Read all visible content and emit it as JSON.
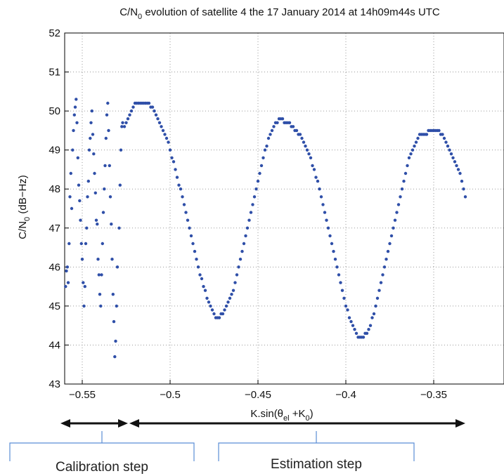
{
  "chart_data": {
    "type": "scatter",
    "title": "C/N0 evolution of satellite 4 the 17 January 2014 at 14h09m44s UTC",
    "xlabel": "K.sin(θel +K0)",
    "ylabel": "C/N0 (dB−Hz)",
    "xlim": [
      -0.56,
      -0.31
    ],
    "ylim": [
      43,
      52
    ],
    "x_ticks": [
      -0.55,
      -0.5,
      -0.45,
      -0.4,
      -0.35
    ],
    "x_tick_labels": [
      "−0.55",
      "−0.5",
      "−0.45",
      "−0.4",
      "−0.35"
    ],
    "y_ticks": [
      43,
      44,
      45,
      46,
      47,
      48,
      49,
      50,
      51,
      52
    ],
    "y_tick_labels": [
      "43",
      "44",
      "45",
      "46",
      "47",
      "48",
      "49",
      "50",
      "51",
      "52"
    ],
    "grid": true,
    "marker_color": "#2f4fa8",
    "series": [
      {
        "points": [
          [
            -0.5595,
            45.5
          ],
          [
            -0.559,
            45.9
          ],
          [
            -0.5585,
            46.0
          ],
          [
            -0.558,
            45.6
          ],
          [
            -0.5575,
            46.6
          ],
          [
            -0.557,
            47.8
          ],
          [
            -0.5565,
            48.4
          ],
          [
            -0.556,
            47.5
          ],
          [
            -0.5555,
            49.0
          ],
          [
            -0.555,
            49.5
          ],
          [
            -0.5545,
            49.9
          ],
          [
            -0.554,
            50.1
          ],
          [
            -0.5535,
            50.3
          ],
          [
            -0.553,
            49.7
          ],
          [
            -0.5525,
            48.8
          ],
          [
            -0.552,
            48.1
          ],
          [
            -0.5515,
            47.7
          ],
          [
            -0.551,
            47.2
          ],
          [
            -0.5505,
            46.6
          ],
          [
            -0.55,
            46.2
          ],
          [
            -0.5495,
            45.6
          ],
          [
            -0.549,
            45.0
          ],
          [
            -0.5485,
            45.5
          ],
          [
            -0.548,
            46.6
          ],
          [
            -0.5475,
            47.0
          ],
          [
            -0.547,
            47.8
          ],
          [
            -0.5465,
            48.2
          ],
          [
            -0.546,
            49.0
          ],
          [
            -0.5455,
            49.3
          ],
          [
            -0.545,
            49.7
          ],
          [
            -0.5445,
            50.0
          ],
          [
            -0.544,
            49.4
          ],
          [
            -0.5435,
            48.9
          ],
          [
            -0.543,
            48.4
          ],
          [
            -0.5425,
            47.9
          ],
          [
            -0.542,
            47.2
          ],
          [
            -0.5415,
            47.1
          ],
          [
            -0.541,
            46.2
          ],
          [
            -0.5405,
            45.8
          ],
          [
            -0.54,
            45.3
          ],
          [
            -0.5395,
            45.0
          ],
          [
            -0.539,
            45.8
          ],
          [
            -0.5385,
            46.6
          ],
          [
            -0.538,
            47.4
          ],
          [
            -0.5375,
            48.0
          ],
          [
            -0.537,
            48.6
          ],
          [
            -0.5365,
            49.3
          ],
          [
            -0.536,
            49.9
          ],
          [
            -0.5355,
            50.2
          ],
          [
            -0.535,
            49.5
          ],
          [
            -0.5345,
            48.6
          ],
          [
            -0.534,
            47.8
          ],
          [
            -0.5335,
            47.1
          ],
          [
            -0.533,
            46.2
          ],
          [
            -0.5325,
            45.3
          ],
          [
            -0.532,
            44.6
          ],
          [
            -0.5315,
            43.7
          ],
          [
            -0.531,
            44.1
          ],
          [
            -0.5305,
            45.0
          ],
          [
            -0.53,
            46.0
          ],
          [
            -0.529,
            47.0
          ],
          [
            -0.5285,
            48.1
          ],
          [
            -0.528,
            49.0
          ],
          [
            -0.5275,
            49.6
          ],
          [
            -0.527,
            49.7
          ],
          [
            -0.526,
            49.6
          ],
          [
            -0.525,
            49.7
          ],
          [
            -0.524,
            49.8
          ],
          [
            -0.523,
            49.9
          ],
          [
            -0.522,
            50.0
          ],
          [
            -0.521,
            50.1
          ],
          [
            -0.52,
            50.2
          ],
          [
            -0.519,
            50.2
          ],
          [
            -0.518,
            50.2
          ],
          [
            -0.517,
            50.2
          ],
          [
            -0.516,
            50.2
          ],
          [
            -0.515,
            50.2
          ],
          [
            -0.514,
            50.2
          ],
          [
            -0.513,
            50.2
          ],
          [
            -0.512,
            50.2
          ],
          [
            -0.511,
            50.1
          ],
          [
            -0.51,
            50.1
          ],
          [
            -0.509,
            50.0
          ],
          [
            -0.508,
            49.9
          ],
          [
            -0.507,
            49.8
          ],
          [
            -0.506,
            49.7
          ],
          [
            -0.505,
            49.6
          ],
          [
            -0.504,
            49.5
          ],
          [
            -0.503,
            49.4
          ],
          [
            -0.502,
            49.3
          ],
          [
            -0.501,
            49.2
          ],
          [
            -0.5,
            49.0
          ],
          [
            -0.499,
            48.8
          ],
          [
            -0.498,
            48.7
          ],
          [
            -0.497,
            48.5
          ],
          [
            -0.496,
            48.3
          ],
          [
            -0.495,
            48.1
          ],
          [
            -0.494,
            48.0
          ],
          [
            -0.493,
            47.8
          ],
          [
            -0.492,
            47.6
          ],
          [
            -0.491,
            47.4
          ],
          [
            -0.49,
            47.2
          ],
          [
            -0.489,
            47.0
          ],
          [
            -0.488,
            46.8
          ],
          [
            -0.487,
            46.6
          ],
          [
            -0.486,
            46.4
          ],
          [
            -0.485,
            46.2
          ],
          [
            -0.484,
            46.0
          ],
          [
            -0.483,
            45.8
          ],
          [
            -0.482,
            45.7
          ],
          [
            -0.481,
            45.5
          ],
          [
            -0.48,
            45.4
          ],
          [
            -0.479,
            45.2
          ],
          [
            -0.478,
            45.1
          ],
          [
            -0.477,
            45.0
          ],
          [
            -0.476,
            44.9
          ],
          [
            -0.475,
            44.8
          ],
          [
            -0.474,
            44.7
          ],
          [
            -0.473,
            44.7
          ],
          [
            -0.472,
            44.7
          ],
          [
            -0.471,
            44.8
          ],
          [
            -0.47,
            44.8
          ],
          [
            -0.469,
            44.9
          ],
          [
            -0.468,
            45.0
          ],
          [
            -0.467,
            45.1
          ],
          [
            -0.466,
            45.2
          ],
          [
            -0.465,
            45.3
          ],
          [
            -0.464,
            45.4
          ],
          [
            -0.463,
            45.6
          ],
          [
            -0.462,
            45.8
          ],
          [
            -0.461,
            46.0
          ],
          [
            -0.46,
            46.2
          ],
          [
            -0.459,
            46.4
          ],
          [
            -0.458,
            46.6
          ],
          [
            -0.457,
            46.8
          ],
          [
            -0.456,
            47.0
          ],
          [
            -0.455,
            47.2
          ],
          [
            -0.454,
            47.4
          ],
          [
            -0.453,
            47.6
          ],
          [
            -0.452,
            47.8
          ],
          [
            -0.451,
            48.0
          ],
          [
            -0.45,
            48.2
          ],
          [
            -0.449,
            48.4
          ],
          [
            -0.448,
            48.6
          ],
          [
            -0.447,
            48.8
          ],
          [
            -0.446,
            49.0
          ],
          [
            -0.445,
            49.1
          ],
          [
            -0.444,
            49.3
          ],
          [
            -0.443,
            49.4
          ],
          [
            -0.442,
            49.5
          ],
          [
            -0.441,
            49.6
          ],
          [
            -0.44,
            49.7
          ],
          [
            -0.439,
            49.7
          ],
          [
            -0.438,
            49.8
          ],
          [
            -0.437,
            49.8
          ],
          [
            -0.436,
            49.8
          ],
          [
            -0.435,
            49.7
          ],
          [
            -0.434,
            49.7
          ],
          [
            -0.433,
            49.7
          ],
          [
            -0.432,
            49.7
          ],
          [
            -0.431,
            49.6
          ],
          [
            -0.43,
            49.6
          ],
          [
            -0.429,
            49.5
          ],
          [
            -0.428,
            49.5
          ],
          [
            -0.427,
            49.4
          ],
          [
            -0.426,
            49.4
          ],
          [
            -0.425,
            49.3
          ],
          [
            -0.424,
            49.2
          ],
          [
            -0.423,
            49.1
          ],
          [
            -0.422,
            49.0
          ],
          [
            -0.421,
            48.9
          ],
          [
            -0.42,
            48.8
          ],
          [
            -0.419,
            48.6
          ],
          [
            -0.418,
            48.5
          ],
          [
            -0.417,
            48.3
          ],
          [
            -0.416,
            48.2
          ],
          [
            -0.415,
            48.0
          ],
          [
            -0.414,
            47.8
          ],
          [
            -0.413,
            47.6
          ],
          [
            -0.412,
            47.4
          ],
          [
            -0.411,
            47.2
          ],
          [
            -0.41,
            47.0
          ],
          [
            -0.409,
            46.8
          ],
          [
            -0.408,
            46.6
          ],
          [
            -0.407,
            46.4
          ],
          [
            -0.406,
            46.2
          ],
          [
            -0.405,
            46.0
          ],
          [
            -0.404,
            45.8
          ],
          [
            -0.403,
            45.6
          ],
          [
            -0.402,
            45.4
          ],
          [
            -0.401,
            45.2
          ],
          [
            -0.4,
            45.0
          ],
          [
            -0.399,
            44.9
          ],
          [
            -0.398,
            44.7
          ],
          [
            -0.397,
            44.6
          ],
          [
            -0.396,
            44.5
          ],
          [
            -0.395,
            44.4
          ],
          [
            -0.394,
            44.3
          ],
          [
            -0.393,
            44.2
          ],
          [
            -0.392,
            44.2
          ],
          [
            -0.391,
            44.2
          ],
          [
            -0.39,
            44.2
          ],
          [
            -0.389,
            44.3
          ],
          [
            -0.388,
            44.3
          ],
          [
            -0.387,
            44.4
          ],
          [
            -0.386,
            44.5
          ],
          [
            -0.385,
            44.7
          ],
          [
            -0.384,
            44.8
          ],
          [
            -0.383,
            45.0
          ],
          [
            -0.382,
            45.2
          ],
          [
            -0.381,
            45.4
          ],
          [
            -0.38,
            45.6
          ],
          [
            -0.379,
            45.8
          ],
          [
            -0.378,
            46.0
          ],
          [
            -0.377,
            46.2
          ],
          [
            -0.376,
            46.4
          ],
          [
            -0.375,
            46.6
          ],
          [
            -0.374,
            46.8
          ],
          [
            -0.373,
            47.0
          ],
          [
            -0.372,
            47.2
          ],
          [
            -0.371,
            47.4
          ],
          [
            -0.37,
            47.6
          ],
          [
            -0.369,
            47.8
          ],
          [
            -0.368,
            48.0
          ],
          [
            -0.367,
            48.2
          ],
          [
            -0.366,
            48.4
          ],
          [
            -0.365,
            48.6
          ],
          [
            -0.364,
            48.8
          ],
          [
            -0.363,
            48.9
          ],
          [
            -0.362,
            49.0
          ],
          [
            -0.361,
            49.1
          ],
          [
            -0.36,
            49.2
          ],
          [
            -0.359,
            49.3
          ],
          [
            -0.358,
            49.4
          ],
          [
            -0.357,
            49.4
          ],
          [
            -0.356,
            49.4
          ],
          [
            -0.355,
            49.4
          ],
          [
            -0.354,
            49.4
          ],
          [
            -0.353,
            49.5
          ],
          [
            -0.352,
            49.5
          ],
          [
            -0.351,
            49.5
          ],
          [
            -0.35,
            49.5
          ],
          [
            -0.349,
            49.5
          ],
          [
            -0.348,
            49.5
          ],
          [
            -0.347,
            49.5
          ],
          [
            -0.346,
            49.4
          ],
          [
            -0.345,
            49.4
          ],
          [
            -0.344,
            49.3
          ],
          [
            -0.343,
            49.2
          ],
          [
            -0.342,
            49.1
          ],
          [
            -0.341,
            49.0
          ],
          [
            -0.34,
            48.9
          ],
          [
            -0.339,
            48.8
          ],
          [
            -0.338,
            48.7
          ],
          [
            -0.337,
            48.6
          ],
          [
            -0.336,
            48.5
          ],
          [
            -0.335,
            48.4
          ],
          [
            -0.334,
            48.2
          ],
          [
            -0.333,
            48.0
          ],
          [
            -0.332,
            47.8
          ]
        ]
      }
    ]
  },
  "annotations": {
    "calibration_label": "Calibration step",
    "estimation_label": "Estimation step"
  },
  "colors": {
    "points": "#2f4fa8",
    "bracket": "#5b8ed6",
    "arrow": "#111111"
  }
}
